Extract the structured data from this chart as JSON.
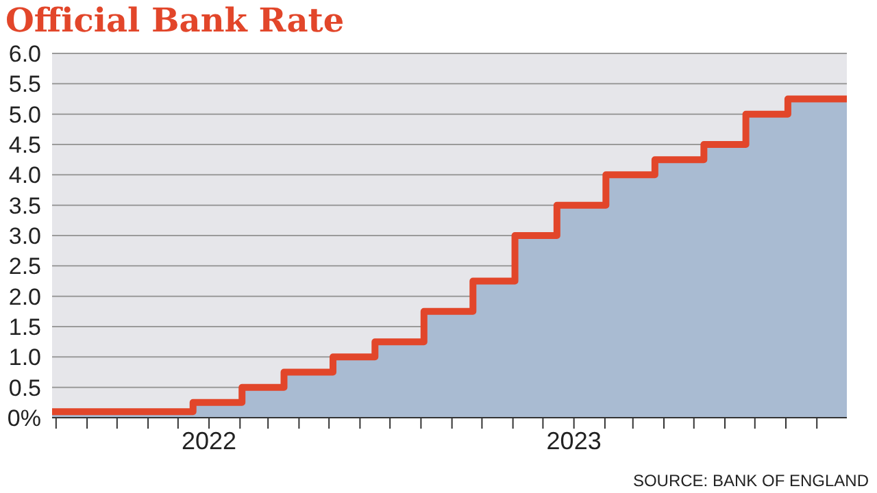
{
  "chart_data": {
    "type": "step",
    "title": "Official Bank Rate",
    "annotations": [
      "SOURCE: BANK OF ENGLAND"
    ],
    "x": [
      "2021-07-28",
      "2021-12-16",
      "2022-02-03",
      "2022-03-17",
      "2022-05-05",
      "2022-06-16",
      "2022-08-04",
      "2022-09-22",
      "2022-11-03",
      "2022-12-15",
      "2023-02-02",
      "2023-03-23",
      "2023-05-11",
      "2023-06-22",
      "2023-08-03",
      "2023-10-01"
    ],
    "series": [
      {
        "type": "area",
        "color": "#a9bbd2",
        "values": [
          0.1,
          0.25,
          0.5,
          0.75,
          1.0,
          1.25,
          1.75,
          2.25,
          3.0,
          3.5,
          4.0,
          4.25,
          4.5,
          5.0,
          5.25,
          5.25
        ]
      },
      {
        "color": "#e2462a",
        "values": [
          0.1,
          0.25,
          0.5,
          0.75,
          1.0,
          1.25,
          1.75,
          2.25,
          3.0,
          3.5,
          4.0,
          4.25,
          4.5,
          5.0,
          5.25,
          5.25
        ]
      }
    ],
    "xlim": [
      "2021-07-28",
      "2023-10-01"
    ],
    "xticks": [
      {
        "value": "2021-08-01",
        "label": null
      },
      {
        "value": "2021-09-01",
        "label": null
      },
      {
        "value": "2021-10-01",
        "label": null
      },
      {
        "value": "2021-11-01",
        "label": null
      },
      {
        "value": "2021-12-01",
        "label": null
      },
      {
        "value": "2022-01-01",
        "label": "2022"
      },
      {
        "value": "2022-02-01",
        "label": null
      },
      {
        "value": "2022-03-01",
        "label": null
      },
      {
        "value": "2022-04-01",
        "label": null
      },
      {
        "value": "2022-05-01",
        "label": null
      },
      {
        "value": "2022-06-01",
        "label": null
      },
      {
        "value": "2022-07-01",
        "label": null
      },
      {
        "value": "2022-08-01",
        "label": null
      },
      {
        "value": "2022-09-01",
        "label": null
      },
      {
        "value": "2022-10-01",
        "label": null
      },
      {
        "value": "2022-11-01",
        "label": null
      },
      {
        "value": "2022-12-01",
        "label": null
      },
      {
        "value": "2023-01-01",
        "label": "2023"
      },
      {
        "value": "2023-02-01",
        "label": null
      },
      {
        "value": "2023-03-01",
        "label": null
      },
      {
        "value": "2023-04-01",
        "label": null
      },
      {
        "value": "2023-05-01",
        "label": null
      },
      {
        "value": "2023-06-01",
        "label": null
      },
      {
        "value": "2023-07-01",
        "label": null
      },
      {
        "value": "2023-08-01",
        "label": null
      },
      {
        "value": "2023-09-01",
        "label": null
      }
    ],
    "ylim": [
      0,
      6
    ],
    "yticks": [
      {
        "value": 0,
        "label": "0%"
      },
      {
        "value": 0.5,
        "label": "0.5"
      },
      {
        "value": 1,
        "label": "1.0"
      },
      {
        "value": 1.5,
        "label": "1.5"
      },
      {
        "value": 2,
        "label": "2.0"
      },
      {
        "value": 2.5,
        "label": "2.5"
      },
      {
        "value": 3,
        "label": "3.0"
      },
      {
        "value": 3.5,
        "label": "3.5"
      },
      {
        "value": 4,
        "label": "4.0"
      },
      {
        "value": 4.5,
        "label": "4.5"
      },
      {
        "value": 5,
        "label": "5.0"
      },
      {
        "value": 5.5,
        "label": "5.5"
      },
      {
        "value": 6,
        "label": "6.0"
      }
    ],
    "grid": "y",
    "legend": false
  }
}
